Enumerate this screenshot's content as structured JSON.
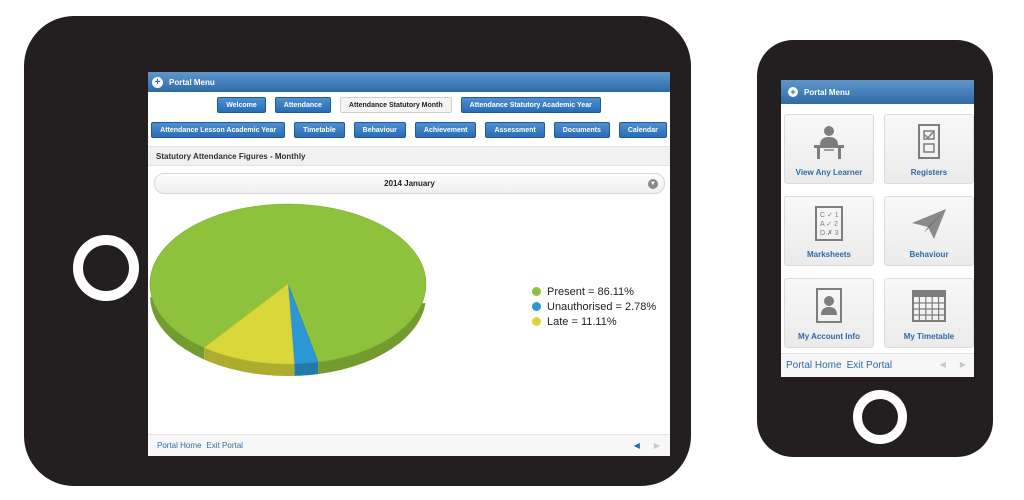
{
  "tablet": {
    "portal_menu": {
      "label": "Portal Menu",
      "icon": "plus-icon"
    },
    "nav_row1": [
      {
        "label": "Welcome",
        "active": false
      },
      {
        "label": "Attendance",
        "active": false
      },
      {
        "label": "Attendance Statutory Month",
        "active": true
      },
      {
        "label": "Attendance Statutory Academic Year",
        "active": false
      }
    ],
    "nav_row2": [
      {
        "label": "Attendance Lesson Academic Year",
        "active": false
      },
      {
        "label": "Timetable",
        "active": false
      },
      {
        "label": "Behaviour",
        "active": false
      },
      {
        "label": "Achievement",
        "active": false
      },
      {
        "label": "Assessment",
        "active": false
      },
      {
        "label": "Documents",
        "active": false
      },
      {
        "label": "Calendar",
        "active": false
      }
    ],
    "section_title": "Statutory Attendance Figures - Monthly",
    "month_select": {
      "value": "2014 January",
      "icon": "chevron-down-icon"
    },
    "footer": {
      "home": "Portal Home",
      "exit": "Exit Portal"
    }
  },
  "chart_data": {
    "type": "pie",
    "slices": [
      {
        "label": "Present",
        "value": 86.11,
        "color": "#8fc23c",
        "legend": "Present = 86.11%"
      },
      {
        "label": "Unauthorised",
        "value": 2.78,
        "color": "#2b97d4",
        "legend": "Unauthorised = 2.78%"
      },
      {
        "label": "Late",
        "value": 11.11,
        "color": "#d9d73a",
        "legend": "Late = 11.11%"
      }
    ],
    "legend_position": "right",
    "style": "3d"
  },
  "phone": {
    "portal_menu": {
      "label": "Portal Menu",
      "icon": "plus-icon"
    },
    "tiles": [
      {
        "label": "View Any Learner",
        "icon": "learner-icon"
      },
      {
        "label": "Registers",
        "icon": "register-icon"
      },
      {
        "label": "Marksheets",
        "icon": "marksheet-icon"
      },
      {
        "label": "Behaviour",
        "icon": "paper-plane-icon"
      },
      {
        "label": "My Account Info",
        "icon": "account-icon"
      },
      {
        "label": "My Timetable",
        "icon": "calendar-icon"
      }
    ],
    "footer": {
      "home": "Portal Home",
      "exit": "Exit Portal"
    }
  }
}
